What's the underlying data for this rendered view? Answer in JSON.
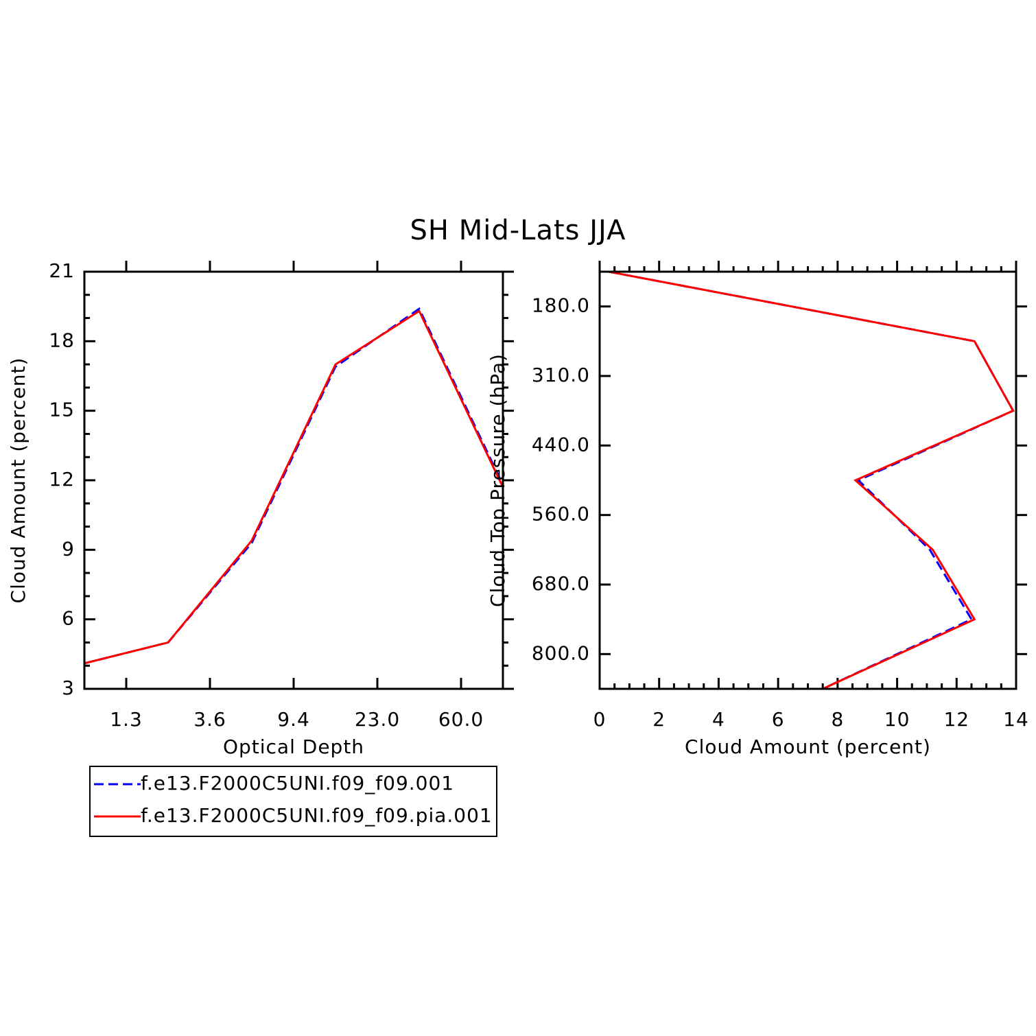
{
  "title": "SH Mid-Lats JJA",
  "chart_data": [
    {
      "type": "line",
      "xlabel": "Optical Depth",
      "ylabel": "Cloud Amount (percent)",
      "x": [
        1,
        2,
        3,
        4,
        5,
        6
      ],
      "xlim": [
        1,
        6
      ],
      "xticks": [
        {
          "value": 1.5,
          "label": "1.3"
        },
        {
          "value": 2.5,
          "label": "3.6"
        },
        {
          "value": 3.5,
          "label": "9.4"
        },
        {
          "value": 4.5,
          "label": "23.0"
        },
        {
          "value": 5.5,
          "label": "60.0"
        }
      ],
      "ylim": [
        3,
        21
      ],
      "yticks": [
        3,
        6,
        9,
        12,
        15,
        18,
        21
      ],
      "minor_per_major": 3,
      "series": [
        {
          "name": "f.e13.F2000C5UNI.f09_f09.001",
          "color": "#0000ff",
          "dashed": true,
          "values": [
            4.1,
            5.0,
            9.3,
            16.9,
            19.4,
            11.8
          ]
        },
        {
          "name": "f.e13.F2000C5UNI.f09_f09.pia.001",
          "color": "#ff0000",
          "dashed": false,
          "values": [
            4.1,
            5.0,
            9.4,
            17.0,
            19.3,
            11.7
          ]
        }
      ]
    },
    {
      "type": "line",
      "orientation": "horizontal",
      "xlabel": "Cloud Amount (percent)",
      "ylabel": "Cloud Top Pressure (hPa)",
      "y": [
        0,
        1,
        2,
        3,
        4,
        5,
        6
      ],
      "ylim": [
        6,
        0
      ],
      "yticks": [
        {
          "value": 0.5,
          "label": "180.0"
        },
        {
          "value": 1.5,
          "label": "310.0"
        },
        {
          "value": 2.5,
          "label": "440.0"
        },
        {
          "value": 3.5,
          "label": "560.0"
        },
        {
          "value": 4.5,
          "label": "680.0"
        },
        {
          "value": 5.5,
          "label": "800.0"
        }
      ],
      "xlim": [
        0,
        14
      ],
      "xticks": [
        0,
        2,
        4,
        6,
        8,
        10,
        12,
        14
      ],
      "minor_per_major": 4,
      "series": [
        {
          "color": "#0000ff",
          "dashed": true,
          "values": [
            0.3,
            12.6,
            13.9,
            8.7,
            11.1,
            12.5,
            7.5
          ]
        },
        {
          "color": "#ff0000",
          "dashed": false,
          "values": [
            0.3,
            12.6,
            13.9,
            8.6,
            11.2,
            12.6,
            7.5
          ]
        }
      ]
    }
  ]
}
